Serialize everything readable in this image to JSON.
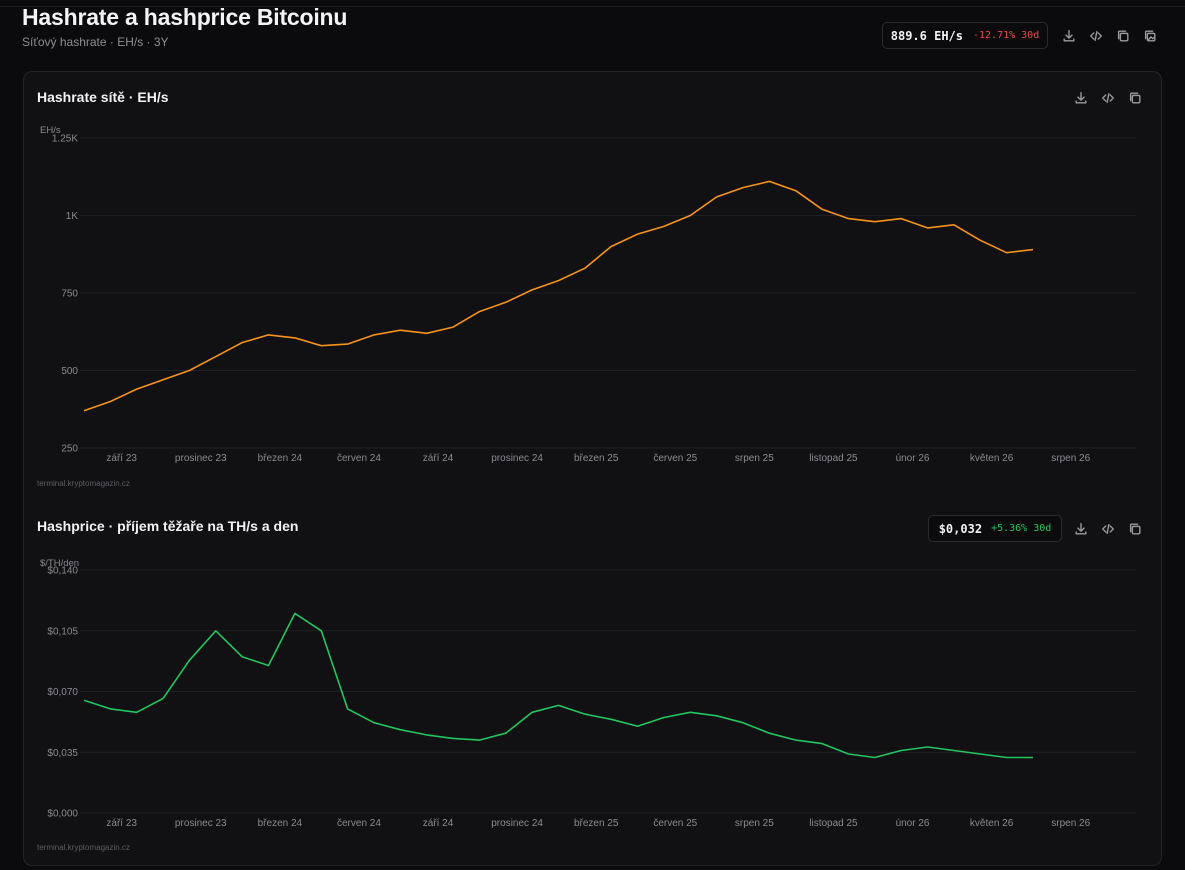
{
  "header": {
    "title": "Hashrate a hashprice Bitcoinu",
    "subtitle": "Síťový hashrate · EH/s · 3Y",
    "stat_value": "889.6 EH/s",
    "stat_change": "-12.71% 30d"
  },
  "toolbar": {
    "icons": [
      "download-icon",
      "code-icon",
      "copy-icon",
      "copy-image-icon"
    ]
  },
  "watermark": "terminal.kryptomagazin.cz",
  "colors": {
    "background": "#0b0b0d",
    "card": "#111114",
    "hashrate_line": "#f7931a",
    "hashprice_line": "#22c55e",
    "negative": "#ef4848",
    "positive": "#22c55e"
  },
  "hashrate_chart": {
    "title": "Hashrate sítě · EH/s",
    "unit": "EH/s"
  },
  "hashprice_chart": {
    "title": "Hashprice · příjem těžaře na TH/s a den",
    "unit": "$/TH/den",
    "stat_value": "$0,032",
    "stat_change": "+5.36% 30d"
  },
  "chart_data": [
    {
      "type": "line",
      "title": "Hashrate sítě · EH/s",
      "ylabel": "EH/s",
      "ylim": [
        250,
        1250
      ],
      "yticks": [
        250,
        500,
        750,
        1000,
        1250
      ],
      "ytick_labels": [
        "250",
        "500",
        "750",
        "1K",
        "1.25K"
      ],
      "xlim": [
        0,
        36
      ],
      "xtick_positions": [
        1.43,
        4.43,
        7.43,
        10.43,
        13.43,
        16.43,
        19.43,
        22.43,
        25.43,
        28.43,
        31.43,
        34.43,
        37.43
      ],
      "xtick_labels": [
        "září 23",
        "prosinec 23",
        "březen 24",
        "červen 24",
        "září 24",
        "prosinec 24",
        "březen 25",
        "červen 25",
        "srpen 25",
        "listopad 25",
        "únor 26",
        "květen 26",
        "srpen 26"
      ],
      "grid": true,
      "legend": "none",
      "series": [
        {
          "x": [
            0,
            1,
            2,
            3,
            4,
            5,
            6,
            7,
            8,
            9,
            10,
            11,
            12,
            13,
            14,
            15,
            16,
            17,
            18,
            19,
            20,
            21,
            22,
            23,
            24,
            25,
            26,
            27,
            28,
            29,
            30,
            31,
            32,
            33,
            34,
            35,
            36
          ],
          "values": [
            370,
            400,
            440,
            470,
            500,
            545,
            590,
            615,
            605,
            580,
            585,
            615,
            630,
            620,
            640,
            690,
            720,
            760,
            790,
            830,
            900,
            940,
            965,
            1000,
            1060,
            1090,
            1110,
            1080,
            1020,
            990,
            980,
            990,
            960,
            970,
            920,
            880,
            890
          ]
        }
      ]
    },
    {
      "type": "line",
      "title": "Hashprice · příjem těžaře na TH/s a den",
      "ylabel": "$/TH/den",
      "ylim": [
        0,
        0.14
      ],
      "yticks": [
        0,
        0.035,
        0.07,
        0.105,
        0.14
      ],
      "ytick_labels": [
        "$0,000",
        "$0,035",
        "$0,070",
        "$0,105",
        "$0,140"
      ],
      "xlim": [
        0,
        36
      ],
      "xtick_positions": [
        1.43,
        4.43,
        7.43,
        10.43,
        13.43,
        16.43,
        19.43,
        22.43,
        25.43,
        28.43,
        31.43,
        34.43,
        37.43
      ],
      "xtick_labels": [
        "září 23",
        "prosinec 23",
        "březen 24",
        "červen 24",
        "září 24",
        "prosinec 24",
        "březen 25",
        "červen 25",
        "srpen 25",
        "listopad 25",
        "únor 26",
        "květen 26",
        "srpen 26"
      ],
      "grid": true,
      "legend": "none",
      "series": [
        {
          "x": [
            0,
            1,
            2,
            3,
            4,
            5,
            6,
            7,
            8,
            9,
            10,
            11,
            12,
            13,
            14,
            15,
            16,
            17,
            18,
            19,
            20,
            21,
            22,
            23,
            24,
            25,
            26,
            27,
            28,
            29,
            30,
            31,
            32,
            33,
            34,
            35,
            36
          ],
          "values": [
            0.065,
            0.06,
            0.058,
            0.066,
            0.088,
            0.105,
            0.09,
            0.085,
            0.115,
            0.105,
            0.06,
            0.052,
            0.048,
            0.045,
            0.043,
            0.042,
            0.046,
            0.058,
            0.062,
            0.057,
            0.054,
            0.05,
            0.055,
            0.058,
            0.056,
            0.052,
            0.046,
            0.042,
            0.04,
            0.034,
            0.032,
            0.036,
            0.038,
            0.036,
            0.034,
            0.032,
            0.032
          ]
        }
      ]
    }
  ]
}
